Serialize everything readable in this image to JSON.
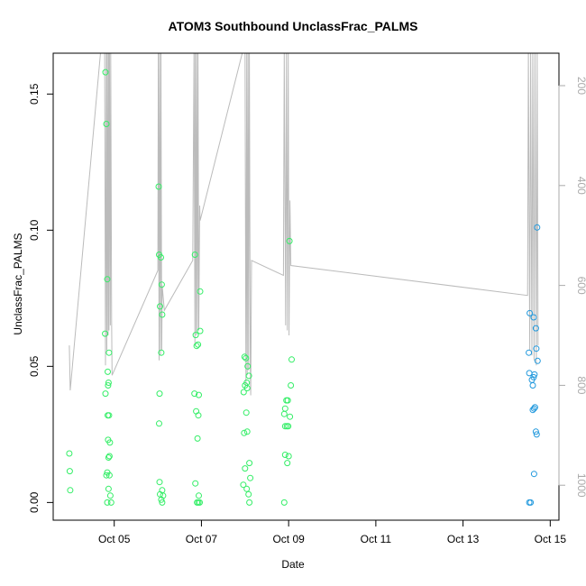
{
  "chart_data": {
    "type": "scatter",
    "title": "ATOM3 Southbound UnclassFrac_PALMS",
    "xlabel": "Date",
    "ylabel": "UnclassFrac_PALMS",
    "x_unit": "days (Oct, 2017)",
    "xlim": [
      3.6,
      15.2
    ],
    "ylim": [
      -0.0065,
      0.165
    ],
    "x_ticks": [
      {
        "value": 5,
        "label": "Oct 05"
      },
      {
        "value": 7,
        "label": "Oct 07"
      },
      {
        "value": 9,
        "label": "Oct 09"
      },
      {
        "value": 11,
        "label": "Oct 11"
      },
      {
        "value": 13,
        "label": "Oct 13"
      },
      {
        "value": 15,
        "label": "Oct 15"
      }
    ],
    "y_ticks": [
      {
        "value": 0.0,
        "label": "0.00"
      },
      {
        "value": 0.05,
        "label": "0.05"
      },
      {
        "value": 0.1,
        "label": "0.10"
      },
      {
        "value": 0.15,
        "label": "0.15"
      }
    ],
    "y2_label": "",
    "y2_lim": [
      1070,
      135
    ],
    "y2_ticks": [
      {
        "value": 200,
        "label": "200"
      },
      {
        "value": 400,
        "label": "400"
      },
      {
        "value": 600,
        "label": "600"
      },
      {
        "value": 800,
        "label": "800"
      },
      {
        "value": 1000,
        "label": "1000"
      }
    ],
    "grid": false,
    "colors": {
      "points_early": "#33ee66",
      "points_late": "#2299dd",
      "pressure_line": "#bbbbbb",
      "axis": "#000000",
      "y2_axis": "#aaaaaa"
    },
    "points": [
      [
        3.97,
        0.018
      ],
      [
        3.98,
        0.0115
      ],
      [
        3.99,
        0.0045
      ],
      [
        4.8,
        0.158
      ],
      [
        4.82,
        0.139
      ],
      [
        4.84,
        0.082
      ],
      [
        4.79,
        0.062
      ],
      [
        4.88,
        0.055
      ],
      [
        4.85,
        0.048
      ],
      [
        4.87,
        0.044
      ],
      [
        4.86,
        0.043
      ],
      [
        4.8,
        0.04
      ],
      [
        4.88,
        0.032
      ],
      [
        4.85,
        0.032
      ],
      [
        4.86,
        0.023
      ],
      [
        4.9,
        0.022
      ],
      [
        4.89,
        0.017
      ],
      [
        4.87,
        0.0165
      ],
      [
        4.84,
        0.011
      ],
      [
        4.82,
        0.01
      ],
      [
        4.89,
        0.01
      ],
      [
        4.87,
        0.005
      ],
      [
        4.91,
        0.0025
      ],
      [
        4.84,
        0.0
      ],
      [
        4.93,
        0.0
      ],
      [
        6.02,
        0.116
      ],
      [
        6.03,
        0.091
      ],
      [
        6.07,
        0.09
      ],
      [
        6.09,
        0.08
      ],
      [
        6.05,
        0.072
      ],
      [
        6.1,
        0.069
      ],
      [
        6.08,
        0.055
      ],
      [
        6.04,
        0.04
      ],
      [
        6.03,
        0.029
      ],
      [
        6.04,
        0.0075
      ],
      [
        6.1,
        0.0045
      ],
      [
        6.05,
        0.003
      ],
      [
        6.12,
        0.0025
      ],
      [
        6.08,
        0.001
      ],
      [
        6.1,
        0.0
      ],
      [
        6.85,
        0.091
      ],
      [
        6.97,
        0.0775
      ],
      [
        6.97,
        0.063
      ],
      [
        6.87,
        0.0615
      ],
      [
        6.92,
        0.058
      ],
      [
        6.89,
        0.0575
      ],
      [
        6.84,
        0.04
      ],
      [
        6.94,
        0.0395
      ],
      [
        6.88,
        0.0335
      ],
      [
        6.93,
        0.032
      ],
      [
        6.91,
        0.0235
      ],
      [
        6.86,
        0.007
      ],
      [
        6.94,
        0.0025
      ],
      [
        6.9,
        0.0
      ],
      [
        6.93,
        0.0
      ],
      [
        6.96,
        0.0
      ],
      [
        7.99,
        0.0535
      ],
      [
        8.02,
        0.053
      ],
      [
        8.06,
        0.05
      ],
      [
        8.09,
        0.0465
      ],
      [
        8.04,
        0.044
      ],
      [
        8.0,
        0.043
      ],
      [
        8.05,
        0.042
      ],
      [
        7.97,
        0.0405
      ],
      [
        8.03,
        0.033
      ],
      [
        8.05,
        0.026
      ],
      [
        7.98,
        0.0255
      ],
      [
        8.1,
        0.0145
      ],
      [
        8.0,
        0.0125
      ],
      [
        8.12,
        0.009
      ],
      [
        7.96,
        0.0065
      ],
      [
        8.04,
        0.005
      ],
      [
        8.08,
        0.003
      ],
      [
        8.1,
        0.0
      ],
      [
        9.02,
        0.096
      ],
      [
        9.05,
        0.043
      ],
      [
        8.95,
        0.0375
      ],
      [
        8.98,
        0.0375
      ],
      [
        8.92,
        0.0345
      ],
      [
        8.9,
        0.0325
      ],
      [
        9.03,
        0.0315
      ],
      [
        8.99,
        0.028
      ],
      [
        8.92,
        0.028
      ],
      [
        8.96,
        0.028
      ],
      [
        8.92,
        0.0175
      ],
      [
        9.0,
        0.017
      ],
      [
        8.97,
        0.0145
      ],
      [
        8.9,
        0.0
      ],
      [
        9.07,
        0.0525
      ],
      [
        14.7,
        0.101
      ],
      [
        14.53,
        0.0695
      ],
      [
        14.62,
        0.068
      ],
      [
        14.67,
        0.064
      ],
      [
        14.68,
        0.0565
      ],
      [
        14.51,
        0.055
      ],
      [
        14.71,
        0.052
      ],
      [
        14.52,
        0.0475
      ],
      [
        14.64,
        0.047
      ],
      [
        14.62,
        0.046
      ],
      [
        14.6,
        0.043
      ],
      [
        14.58,
        0.045
      ],
      [
        14.6,
        0.034
      ],
      [
        14.63,
        0.0345
      ],
      [
        14.65,
        0.035
      ],
      [
        14.67,
        0.026
      ],
      [
        14.69,
        0.025
      ],
      [
        14.63,
        0.0105
      ],
      [
        14.52,
        0.0
      ],
      [
        14.55,
        0.0
      ]
    ],
    "pressure_track": [
      [
        3.97,
        720
      ],
      [
        3.99,
        810
      ],
      [
        4.69,
        130
      ],
      [
        4.78,
        130
      ],
      [
        4.8,
        760
      ],
      [
        4.82,
        130
      ],
      [
        4.83,
        730
      ],
      [
        4.84,
        130
      ],
      [
        4.86,
        700
      ],
      [
        4.87,
        130
      ],
      [
        4.88,
        690
      ],
      [
        4.89,
        130
      ],
      [
        4.91,
        680
      ],
      [
        4.92,
        130
      ],
      [
        4.94,
        670
      ],
      [
        4.95,
        780
      ],
      [
        6.0,
        570
      ],
      [
        6.01,
        130
      ],
      [
        6.03,
        750
      ],
      [
        6.04,
        130
      ],
      [
        6.06,
        740
      ],
      [
        6.07,
        130
      ],
      [
        6.09,
        730
      ],
      [
        6.1,
        600
      ],
      [
        6.15,
        650
      ],
      [
        6.8,
        550
      ],
      [
        6.83,
        130
      ],
      [
        6.85,
        720
      ],
      [
        6.86,
        130
      ],
      [
        6.88,
        700
      ],
      [
        6.89,
        130
      ],
      [
        6.91,
        690
      ],
      [
        6.92,
        130
      ],
      [
        6.94,
        690
      ],
      [
        6.96,
        440
      ],
      [
        6.97,
        470
      ],
      [
        7.95,
        130
      ],
      [
        8.0,
        130
      ],
      [
        8.02,
        800
      ],
      [
        8.04,
        130
      ],
      [
        8.05,
        780
      ],
      [
        8.07,
        130
      ],
      [
        8.08,
        770
      ],
      [
        8.1,
        130
      ],
      [
        8.12,
        760
      ],
      [
        8.13,
        820
      ],
      [
        8.15,
        550
      ],
      [
        8.88,
        580
      ],
      [
        8.9,
        130
      ],
      [
        8.93,
        680
      ],
      [
        8.95,
        130
      ],
      [
        8.97,
        690
      ],
      [
        8.99,
        130
      ],
      [
        9.01,
        700
      ],
      [
        9.03,
        430
      ],
      [
        9.05,
        560
      ],
      [
        14.48,
        620
      ],
      [
        14.5,
        130
      ],
      [
        14.53,
        730
      ],
      [
        14.55,
        130
      ],
      [
        14.58,
        740
      ],
      [
        14.6,
        130
      ],
      [
        14.63,
        750
      ],
      [
        14.65,
        130
      ],
      [
        14.68,
        760
      ],
      [
        14.7,
        130
      ],
      [
        14.72,
        720
      ]
    ]
  }
}
